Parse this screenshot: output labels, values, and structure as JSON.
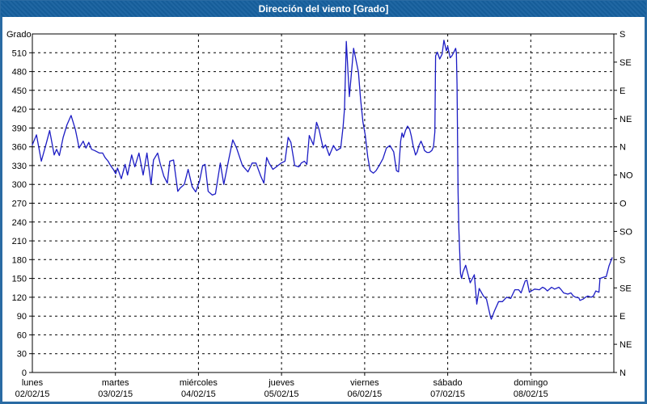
{
  "window": {
    "title": "Dirección del viento [Grado]"
  },
  "colors": {
    "frame": "#2a6ba3",
    "title_bar": "#17619f",
    "title_text": "#ffffff",
    "background": "#ffffff",
    "plot_border": "#000000",
    "grid": "#000000",
    "line": "#1c1cc4",
    "label_text": "#000000"
  },
  "chart_data": {
    "type": "line",
    "title": "Dirección del viento [Grado]",
    "ylabel": "Grado",
    "xlabel": "",
    "legend": "none",
    "grid": "dashed black, horizontal every 30 grados, vertical at day boundaries",
    "ylim": [
      0,
      540
    ],
    "xlim_hours": [
      0,
      168
    ],
    "y_axis_left": {
      "label": "Grado",
      "ticks": [
        0,
        30,
        60,
        90,
        120,
        150,
        180,
        210,
        240,
        270,
        300,
        330,
        360,
        390,
        420,
        450,
        480,
        510
      ]
    },
    "y_axis_right": {
      "ticks": [
        {
          "value": 540,
          "label": "S"
        },
        {
          "value": 495,
          "label": "SE"
        },
        {
          "value": 450,
          "label": "E"
        },
        {
          "value": 405,
          "label": "NE"
        },
        {
          "value": 360,
          "label": "N"
        },
        {
          "value": 315,
          "label": "NO"
        },
        {
          "value": 270,
          "label": "O"
        },
        {
          "value": 225,
          "label": "SO"
        },
        {
          "value": 180,
          "label": "S"
        },
        {
          "value": 135,
          "label": "SE"
        },
        {
          "value": 90,
          "label": "E"
        },
        {
          "value": 45,
          "label": "NE"
        },
        {
          "value": 0,
          "label": "N"
        }
      ]
    },
    "x_axis": {
      "hours_per_day": 24,
      "days": [
        {
          "name": "lunes",
          "date": "02/02/15"
        },
        {
          "name": "martes",
          "date": "03/02/15"
        },
        {
          "name": "miércoles",
          "date": "04/02/15"
        },
        {
          "name": "jueves",
          "date": "05/02/15"
        },
        {
          "name": "viernes",
          "date": "06/02/15"
        },
        {
          "name": "sábado",
          "date": "07/02/15"
        },
        {
          "name": "domingo",
          "date": "08/02/15"
        }
      ]
    },
    "series": [
      {
        "name": "Dirección del viento",
        "color": "#1c1cc4",
        "points": [
          [
            0,
            363
          ],
          [
            1.2,
            379
          ],
          [
            2.6,
            337
          ],
          [
            4,
            365
          ],
          [
            5,
            386
          ],
          [
            6.3,
            347
          ],
          [
            7,
            356
          ],
          [
            7.8,
            346
          ],
          [
            8.9,
            375
          ],
          [
            10,
            395
          ],
          [
            11.2,
            410
          ],
          [
            12.4,
            388
          ],
          [
            12.9,
            375
          ],
          [
            13.5,
            358
          ],
          [
            14.7,
            369
          ],
          [
            15.5,
            358
          ],
          [
            16.3,
            367
          ],
          [
            17.1,
            356
          ],
          [
            18,
            354
          ],
          [
            19.4,
            350
          ],
          [
            20.3,
            350
          ],
          [
            21,
            343
          ],
          [
            21.9,
            337
          ],
          [
            22.6,
            330
          ],
          [
            23.4,
            324
          ],
          [
            24.1,
            317
          ],
          [
            24.6,
            326
          ],
          [
            25.7,
            309
          ],
          [
            26.8,
            332
          ],
          [
            27.5,
            315
          ],
          [
            28.7,
            347
          ],
          [
            29.6,
            328
          ],
          [
            30.8,
            350
          ],
          [
            32,
            315
          ],
          [
            33.1,
            350
          ],
          [
            34.3,
            300
          ],
          [
            35,
            339
          ],
          [
            36.2,
            350
          ],
          [
            36.9,
            334
          ],
          [
            38,
            313
          ],
          [
            39,
            302
          ],
          [
            39.7,
            337
          ],
          [
            40.8,
            339
          ],
          [
            42,
            289
          ],
          [
            42.7,
            294
          ],
          [
            43.9,
            300
          ],
          [
            45,
            324
          ],
          [
            46.2,
            296
          ],
          [
            47.2,
            288
          ],
          [
            48.3,
            305
          ],
          [
            49.2,
            330
          ],
          [
            49.9,
            332
          ],
          [
            50.8,
            289
          ],
          [
            52,
            283
          ],
          [
            52.9,
            285
          ],
          [
            54.3,
            334
          ],
          [
            55.3,
            300
          ],
          [
            56.7,
            339
          ],
          [
            57.9,
            371
          ],
          [
            59,
            358
          ],
          [
            60.7,
            330
          ],
          [
            62.3,
            320
          ],
          [
            63.5,
            334
          ],
          [
            64.6,
            334
          ],
          [
            66,
            313
          ],
          [
            66.9,
            302
          ],
          [
            67.7,
            343
          ],
          [
            68.4,
            334
          ],
          [
            69.5,
            324
          ],
          [
            70.5,
            328
          ],
          [
            71.9,
            334
          ],
          [
            73,
            337
          ],
          [
            73.9,
            375
          ],
          [
            74.7,
            367
          ],
          [
            75.8,
            330
          ],
          [
            77,
            328
          ],
          [
            77.7,
            334
          ],
          [
            78.6,
            337
          ],
          [
            79.3,
            332
          ],
          [
            80,
            378
          ],
          [
            81.2,
            363
          ],
          [
            82.1,
            399
          ],
          [
            82.8,
            388
          ],
          [
            84,
            358
          ],
          [
            84.7,
            363
          ],
          [
            85.8,
            346
          ],
          [
            87,
            362
          ],
          [
            87.9,
            354
          ],
          [
            89.1,
            358
          ],
          [
            89.8,
            393
          ],
          [
            90.2,
            421
          ],
          [
            90.7,
            528
          ],
          [
            91.6,
            440
          ],
          [
            92.8,
            517
          ],
          [
            94.2,
            479
          ],
          [
            94.8,
            438
          ],
          [
            95.5,
            400
          ],
          [
            96.2,
            378
          ],
          [
            96.9,
            344
          ],
          [
            97.6,
            322
          ],
          [
            98.5,
            318
          ],
          [
            99.3,
            322
          ],
          [
            100.2,
            330
          ],
          [
            101.3,
            341
          ],
          [
            102.3,
            358
          ],
          [
            103.3,
            362
          ],
          [
            104.4,
            352
          ],
          [
            105.2,
            322
          ],
          [
            105.8,
            320
          ],
          [
            106.4,
            369
          ],
          [
            106.8,
            382
          ],
          [
            107.2,
            375
          ],
          [
            107.8,
            386
          ],
          [
            108.4,
            393
          ],
          [
            109,
            388
          ],
          [
            109.5,
            377
          ],
          [
            110,
            362
          ],
          [
            110.7,
            347
          ],
          [
            111.2,
            352
          ],
          [
            111.7,
            362
          ],
          [
            112.3,
            369
          ],
          [
            112.8,
            362
          ],
          [
            113.3,
            354
          ],
          [
            114,
            351
          ],
          [
            114.7,
            351
          ],
          [
            115.4,
            354
          ],
          [
            115.9,
            360
          ],
          [
            116.3,
            384
          ],
          [
            116.5,
            505
          ],
          [
            117,
            511
          ],
          [
            117.7,
            500
          ],
          [
            118.4,
            508
          ],
          [
            118.9,
            530
          ],
          [
            119.6,
            513
          ],
          [
            120,
            520
          ],
          [
            120.7,
            502
          ],
          [
            121.2,
            505
          ],
          [
            121.7,
            510
          ],
          [
            122.3,
            517
          ],
          [
            122.5,
            510
          ],
          [
            122.7,
            460
          ],
          [
            123,
            288
          ],
          [
            123.2,
            231
          ],
          [
            123.7,
            158
          ],
          [
            124,
            150
          ],
          [
            124.4,
            160
          ],
          [
            125.2,
            171
          ],
          [
            125.8,
            158
          ],
          [
            126.5,
            143
          ],
          [
            127.7,
            156
          ],
          [
            128.4,
            109
          ],
          [
            129.1,
            134
          ],
          [
            130.3,
            122
          ],
          [
            131.2,
            117
          ],
          [
            132.4,
            88
          ],
          [
            132.6,
            85
          ],
          [
            133.5,
            98
          ],
          [
            134.7,
            113
          ],
          [
            135.8,
            113
          ],
          [
            137,
            120
          ],
          [
            138.2,
            118
          ],
          [
            139.4,
            132
          ],
          [
            140.5,
            132
          ],
          [
            141.2,
            127
          ],
          [
            142.4,
            146
          ],
          [
            142.9,
            147
          ],
          [
            143.6,
            128
          ],
          [
            144.2,
            130
          ],
          [
            145.1,
            133
          ],
          [
            146.5,
            132
          ],
          [
            147.4,
            136
          ],
          [
            148.1,
            134
          ],
          [
            148.8,
            130
          ],
          [
            150,
            136
          ],
          [
            150.9,
            133
          ],
          [
            152.1,
            136
          ],
          [
            152.8,
            132
          ],
          [
            153.5,
            127
          ],
          [
            154.7,
            125
          ],
          [
            155.6,
            127
          ],
          [
            156.3,
            122
          ],
          [
            157,
            120
          ],
          [
            157.9,
            119
          ],
          [
            158.2,
            115
          ],
          [
            159.1,
            117
          ],
          [
            159.8,
            120
          ],
          [
            160.5,
            122
          ],
          [
            161.4,
            120
          ],
          [
            162.1,
            122
          ],
          [
            162.8,
            130
          ],
          [
            163.7,
            128
          ],
          [
            164,
            150
          ],
          [
            165,
            152
          ],
          [
            165.8,
            153
          ],
          [
            166.6,
            170
          ],
          [
            167.5,
            183
          ]
        ]
      }
    ]
  }
}
